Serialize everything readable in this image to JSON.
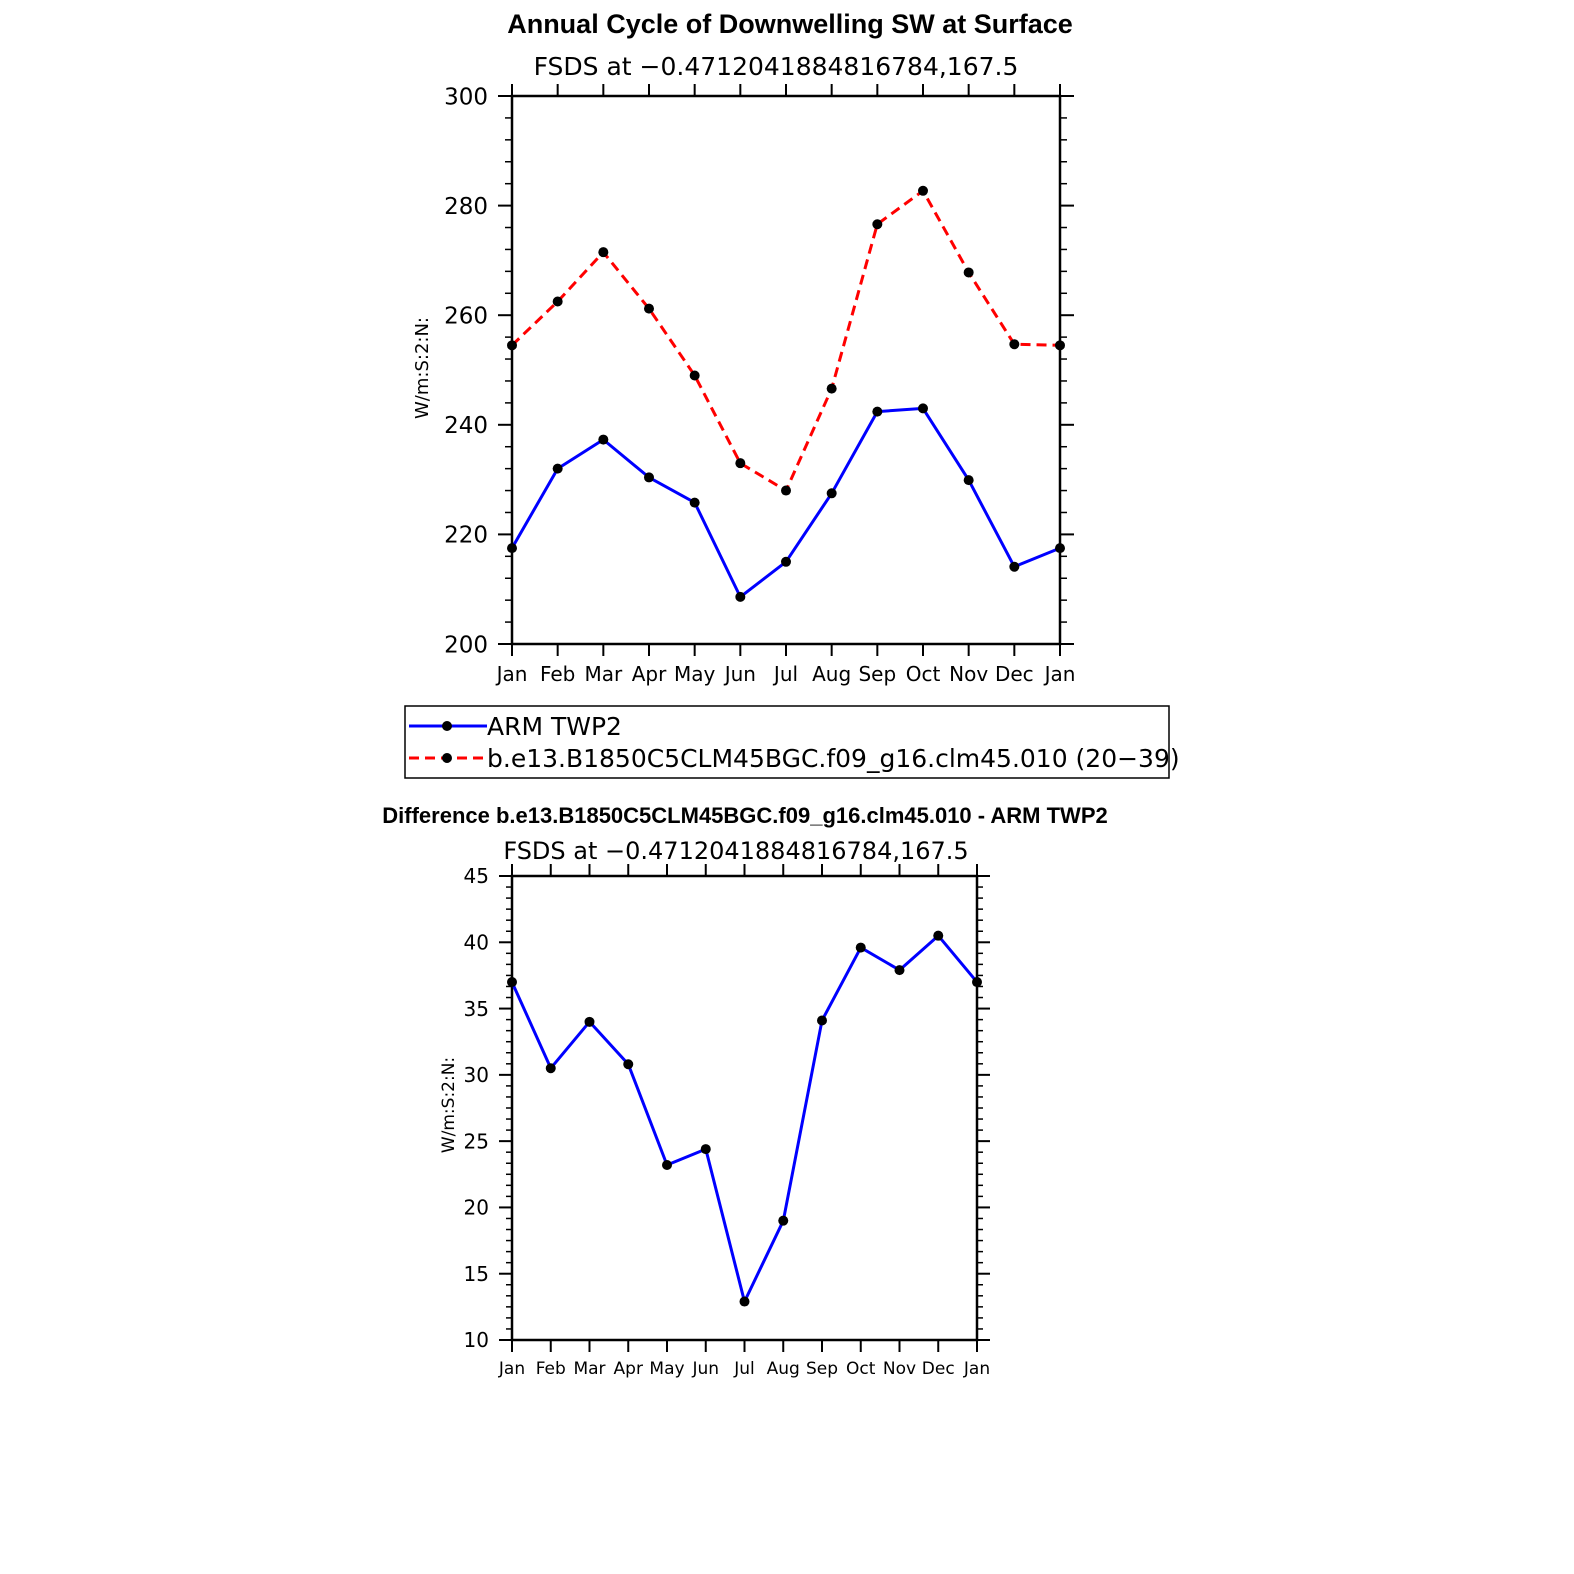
{
  "chart_data": [
    {
      "type": "line",
      "title": "Annual Cycle of Downwelling SW at Surface",
      "subtitle": "FSDS at −0.4712041884816784,167.5",
      "ylabel": "W/m:S:2:N:",
      "xlabel": "",
      "categories": [
        "Jan",
        "Feb",
        "Mar",
        "Apr",
        "May",
        "Jun",
        "Jul",
        "Aug",
        "Sep",
        "Oct",
        "Nov",
        "Dec",
        "Jan"
      ],
      "ylim": [
        200,
        300
      ],
      "yticks": [
        200,
        220,
        240,
        260,
        280,
        300
      ],
      "series": [
        {
          "name": "ARM TWP2",
          "color": "#0000ff",
          "style": "solid",
          "values": [
            217.5,
            232.0,
            237.3,
            230.4,
            225.8,
            208.6,
            215.0,
            227.5,
            242.4,
            243.0,
            229.9,
            214.1,
            217.5
          ]
        },
        {
          "name": "b.e13.B1850C5CLM45BGC.f09_g16.clm45.010 (20−39)",
          "color": "#ff0000",
          "style": "dashed",
          "values": [
            254.5,
            262.5,
            271.5,
            261.2,
            249.0,
            233.0,
            228.0,
            246.6,
            276.6,
            282.7,
            267.8,
            254.7,
            254.5
          ]
        }
      ],
      "legend": "below"
    },
    {
      "type": "line",
      "title": "Difference b.e13.B1850C5CLM45BGC.f09_g16.clm45.010 - ARM TWP2",
      "subtitle": "FSDS at −0.4712041884816784,167.5",
      "ylabel": "W/m:S:2:N:",
      "xlabel": "",
      "categories": [
        "Jan",
        "Feb",
        "Mar",
        "Apr",
        "May",
        "Jun",
        "Jul",
        "Aug",
        "Sep",
        "Oct",
        "Nov",
        "Dec",
        "Jan"
      ],
      "ylim": [
        10,
        45
      ],
      "yticks": [
        10,
        15,
        20,
        25,
        30,
        35,
        40,
        45
      ],
      "series": [
        {
          "name": "Difference",
          "color": "#0000ff",
          "style": "solid",
          "values": [
            37.0,
            30.5,
            34.0,
            30.8,
            23.2,
            24.4,
            12.9,
            19.0,
            34.1,
            39.6,
            37.9,
            40.5,
            37.0
          ]
        }
      ]
    }
  ]
}
